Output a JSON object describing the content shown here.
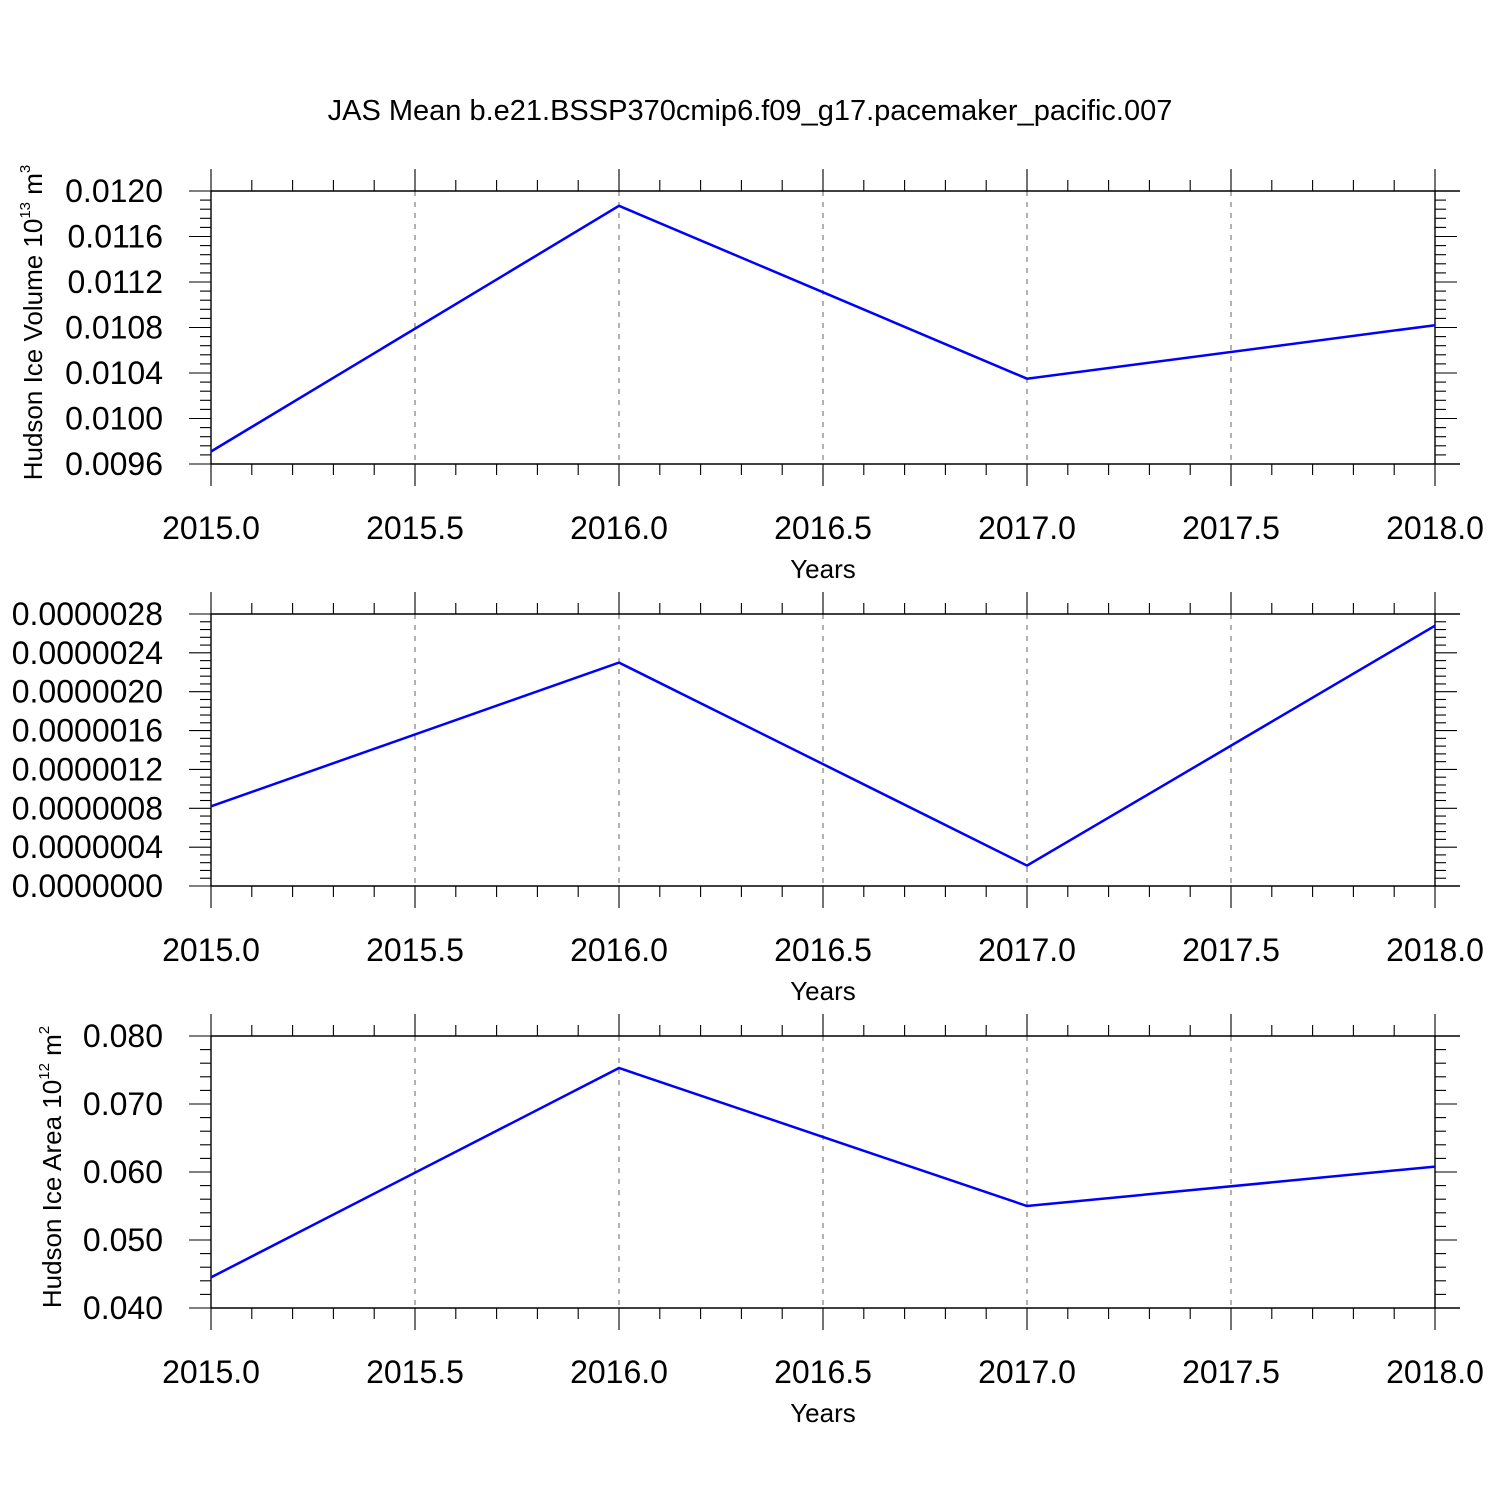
{
  "title": "JAS Mean b.e21.BSSP370cmip6.f09_g17.pacemaker_pacific.007",
  "colors": {
    "line": "#0000ff",
    "axis": "#000000",
    "grid": "#666666"
  },
  "chart_data": [
    {
      "type": "line",
      "xlabel": "Years",
      "ylabel": {
        "prefix": "Hudson Ice Volume 10",
        "exponent": "13",
        "unit": " m",
        "unit_exponent": "3"
      },
      "x": [
        2015,
        2016,
        2017,
        2018
      ],
      "series": [
        {
          "values": [
            0.00971,
            0.01187,
            0.01035,
            0.01082
          ]
        }
      ],
      "xlim": [
        2015,
        2018
      ],
      "ylim": [
        0.0096,
        0.012
      ],
      "xticks": [
        2015.0,
        2015.5,
        2016.0,
        2016.5,
        2017.0,
        2017.5,
        2018.0
      ],
      "xtick_labels": [
        "2015.0",
        "2015.5",
        "2016.0",
        "2016.5",
        "2017.0",
        "2017.5",
        "2018.0"
      ],
      "yticks": [
        0.0096,
        0.01,
        0.0104,
        0.0108,
        0.0112,
        0.0116,
        0.012
      ],
      "ytick_labels": [
        "0.0096",
        "0.0100",
        "0.0104",
        "0.0108",
        "0.0112",
        "0.0116",
        "0.0120"
      ],
      "grid": "vertical dashed"
    },
    {
      "type": "line",
      "xlabel": "Years",
      "ylabel": null,
      "x": [
        2015,
        2016,
        2017,
        2018
      ],
      "series": [
        {
          "values": [
            8.2e-07,
            2.3e-06,
            2.1e-07,
            2.68e-06
          ]
        }
      ],
      "xlim": [
        2015,
        2018
      ],
      "ylim": [
        0.0,
        2.8e-06
      ],
      "xticks": [
        2015.0,
        2015.5,
        2016.0,
        2016.5,
        2017.0,
        2017.5,
        2018.0
      ],
      "xtick_labels": [
        "2015.0",
        "2015.5",
        "2016.0",
        "2016.5",
        "2017.0",
        "2017.5",
        "2018.0"
      ],
      "yticks": [
        0.0,
        4e-07,
        8e-07,
        1.2e-06,
        1.6e-06,
        2e-06,
        2.4e-06,
        2.8e-06
      ],
      "ytick_labels": [
        "0.0000000",
        "0.0000004",
        "0.0000008",
        "0.0000012",
        "0.0000016",
        "0.0000020",
        "0.0000024",
        "0.0000028"
      ],
      "grid": "vertical dashed"
    },
    {
      "type": "line",
      "xlabel": "Years",
      "ylabel": {
        "prefix": "Hudson Ice Area 10",
        "exponent": "12",
        "unit": " m",
        "unit_exponent": "2"
      },
      "x": [
        2015,
        2016,
        2017,
        2018
      ],
      "series": [
        {
          "values": [
            0.0445,
            0.0753,
            0.055,
            0.0608
          ]
        }
      ],
      "xlim": [
        2015,
        2018
      ],
      "ylim": [
        0.04,
        0.08
      ],
      "xticks": [
        2015.0,
        2015.5,
        2016.0,
        2016.5,
        2017.0,
        2017.5,
        2018.0
      ],
      "xtick_labels": [
        "2015.0",
        "2015.5",
        "2016.0",
        "2016.5",
        "2017.0",
        "2017.5",
        "2018.0"
      ],
      "yticks": [
        0.04,
        0.05,
        0.06,
        0.07,
        0.08
      ],
      "ytick_labels": [
        "0.040",
        "0.050",
        "0.060",
        "0.070",
        "0.080"
      ],
      "grid": "vertical dashed"
    }
  ]
}
